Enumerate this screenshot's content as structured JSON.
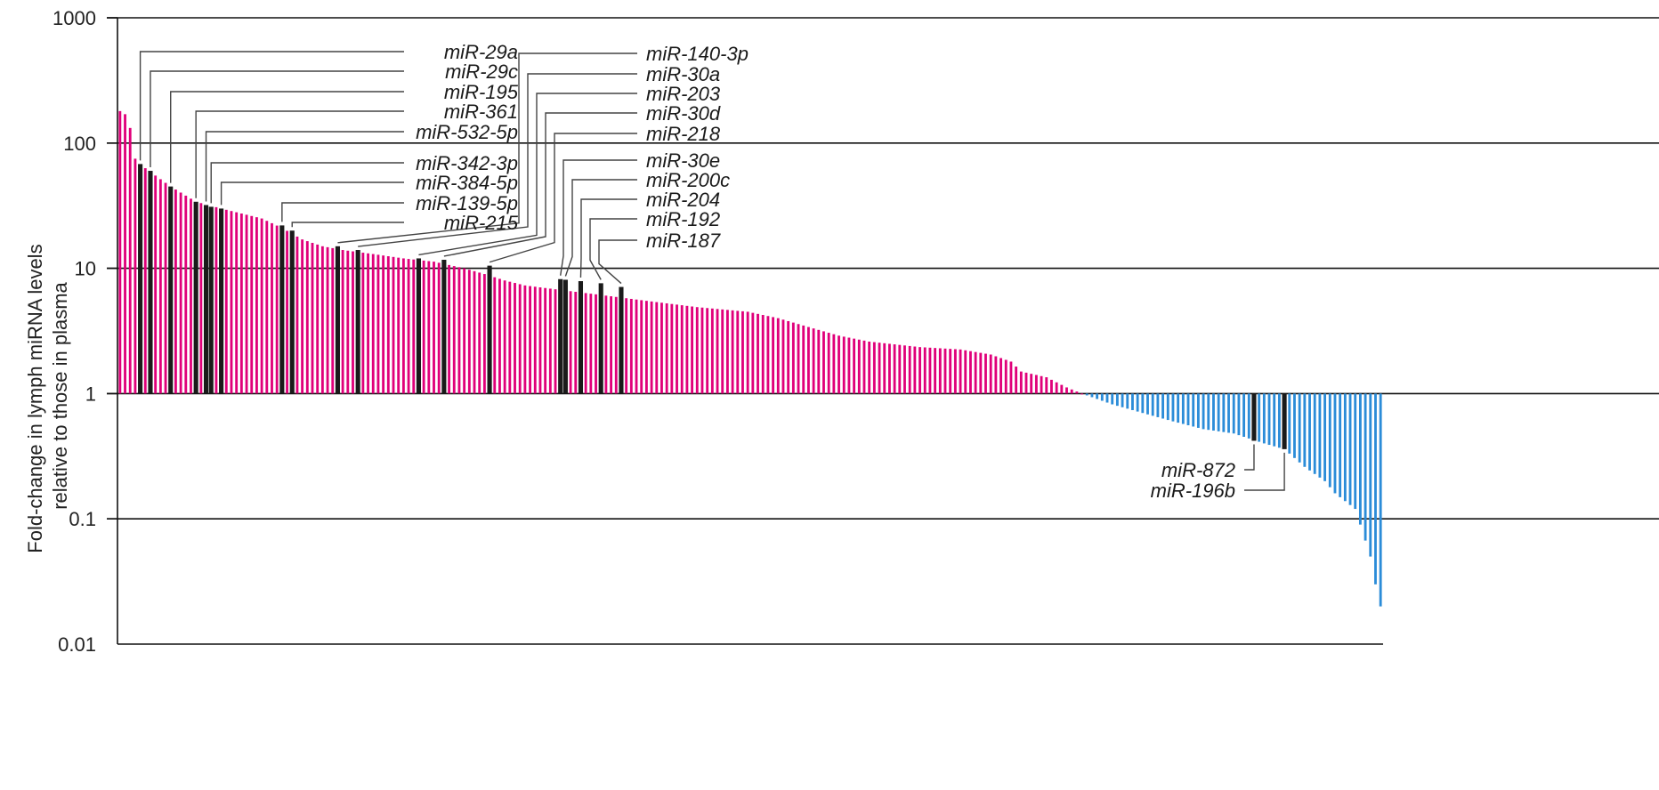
{
  "chart_data": {
    "type": "bar",
    "yscale": "log",
    "ylim": [
      0.01,
      1000
    ],
    "yticks": [
      {
        "value": 1000,
        "label": "1000"
      },
      {
        "value": 100,
        "label": "100"
      },
      {
        "value": 10,
        "label": "10"
      },
      {
        "value": 1,
        "label": "1"
      },
      {
        "value": 0.1,
        "label": "0.1"
      },
      {
        "value": 0.01,
        "label": "0.01"
      }
    ],
    "ylabel_lines": [
      "Fold-change in lymph miRNA levels",
      "relative to those in plasma"
    ],
    "xlabel": "",
    "grid": true,
    "colors": {
      "up": "#e0007a",
      "down": "#2b8cd8",
      "highlight": "#1a1a1a"
    },
    "anchors": [
      [
        0,
        180
      ],
      [
        1,
        170
      ],
      [
        2,
        132
      ],
      [
        3,
        75
      ],
      [
        4,
        68
      ],
      [
        5,
        63
      ],
      [
        7,
        55
      ],
      [
        10,
        45
      ],
      [
        15,
        34
      ],
      [
        20,
        30
      ],
      [
        28,
        25
      ],
      [
        32,
        21
      ],
      [
        36,
        17
      ],
      [
        40,
        15
      ],
      [
        44,
        14
      ],
      [
        50,
        13
      ],
      [
        56,
        12
      ],
      [
        62,
        11.3
      ],
      [
        68,
        10
      ],
      [
        72,
        9
      ],
      [
        76,
        8
      ],
      [
        80,
        7.3
      ],
      [
        86,
        6.8
      ],
      [
        94,
        6.2
      ],
      [
        104,
        5.5
      ],
      [
        114,
        4.9
      ],
      [
        124,
        4.5
      ],
      [
        130,
        4.0
      ],
      [
        136,
        3.4
      ],
      [
        142,
        2.9
      ],
      [
        148,
        2.6
      ],
      [
        158,
        2.35
      ],
      [
        166,
        2.25
      ],
      [
        172,
        2.05
      ],
      [
        176,
        1.8
      ],
      [
        178,
        1.5
      ],
      [
        183,
        1.35
      ],
      [
        187,
        1.12
      ],
      [
        190,
        1.0
      ],
      [
        196,
        0.82
      ],
      [
        202,
        0.7
      ],
      [
        208,
        0.6
      ],
      [
        214,
        0.52
      ],
      [
        220,
        0.48
      ],
      [
        226,
        0.4
      ],
      [
        230,
        0.36
      ],
      [
        234,
        0.26
      ],
      [
        238,
        0.2
      ],
      [
        240,
        0.16
      ],
      [
        244,
        0.12
      ],
      [
        245,
        0.09
      ],
      [
        247,
        0.05
      ],
      [
        248,
        0.03
      ],
      [
        249,
        0.02
      ]
    ],
    "bar_count": 250,
    "highlighted": [
      {
        "index": 4,
        "label": "miR-29a",
        "value": 68
      },
      {
        "index": 6,
        "label": "miR-29c",
        "value": 60
      },
      {
        "index": 10,
        "label": "miR-195",
        "value": 45
      },
      {
        "index": 15,
        "label": "miR-361",
        "value": 34
      },
      {
        "index": 17,
        "label": "miR-532-5p",
        "value": 32
      },
      {
        "index": 18,
        "label": "miR-342-3p",
        "value": 31
      },
      {
        "index": 20,
        "label": "miR-384-5p",
        "value": 30
      },
      {
        "index": 32,
        "label": "miR-139-5p",
        "value": 22
      },
      {
        "index": 34,
        "label": "miR-215",
        "value": 20
      },
      {
        "index": 43,
        "label": "miR-140-3p",
        "value": 15
      },
      {
        "index": 47,
        "label": "miR-30a",
        "value": 14
      },
      {
        "index": 59,
        "label": "miR-203",
        "value": 12
      },
      {
        "index": 64,
        "label": "miR-30d",
        "value": 11.7
      },
      {
        "index": 73,
        "label": "miR-218",
        "value": 10.5
      },
      {
        "index": 87,
        "label": "miR-30e",
        "value": 8.2
      },
      {
        "index": 88,
        "label": "miR-200c",
        "value": 8.1
      },
      {
        "index": 91,
        "label": "miR-204",
        "value": 7.9
      },
      {
        "index": 95,
        "label": "miR-192",
        "value": 7.6
      },
      {
        "index": 99,
        "label": "miR-187",
        "value": 7.1
      },
      {
        "index": 224,
        "label": "miR-872",
        "value": 0.42
      },
      {
        "index": 230,
        "label": "miR-196b",
        "value": 0.36
      }
    ]
  }
}
